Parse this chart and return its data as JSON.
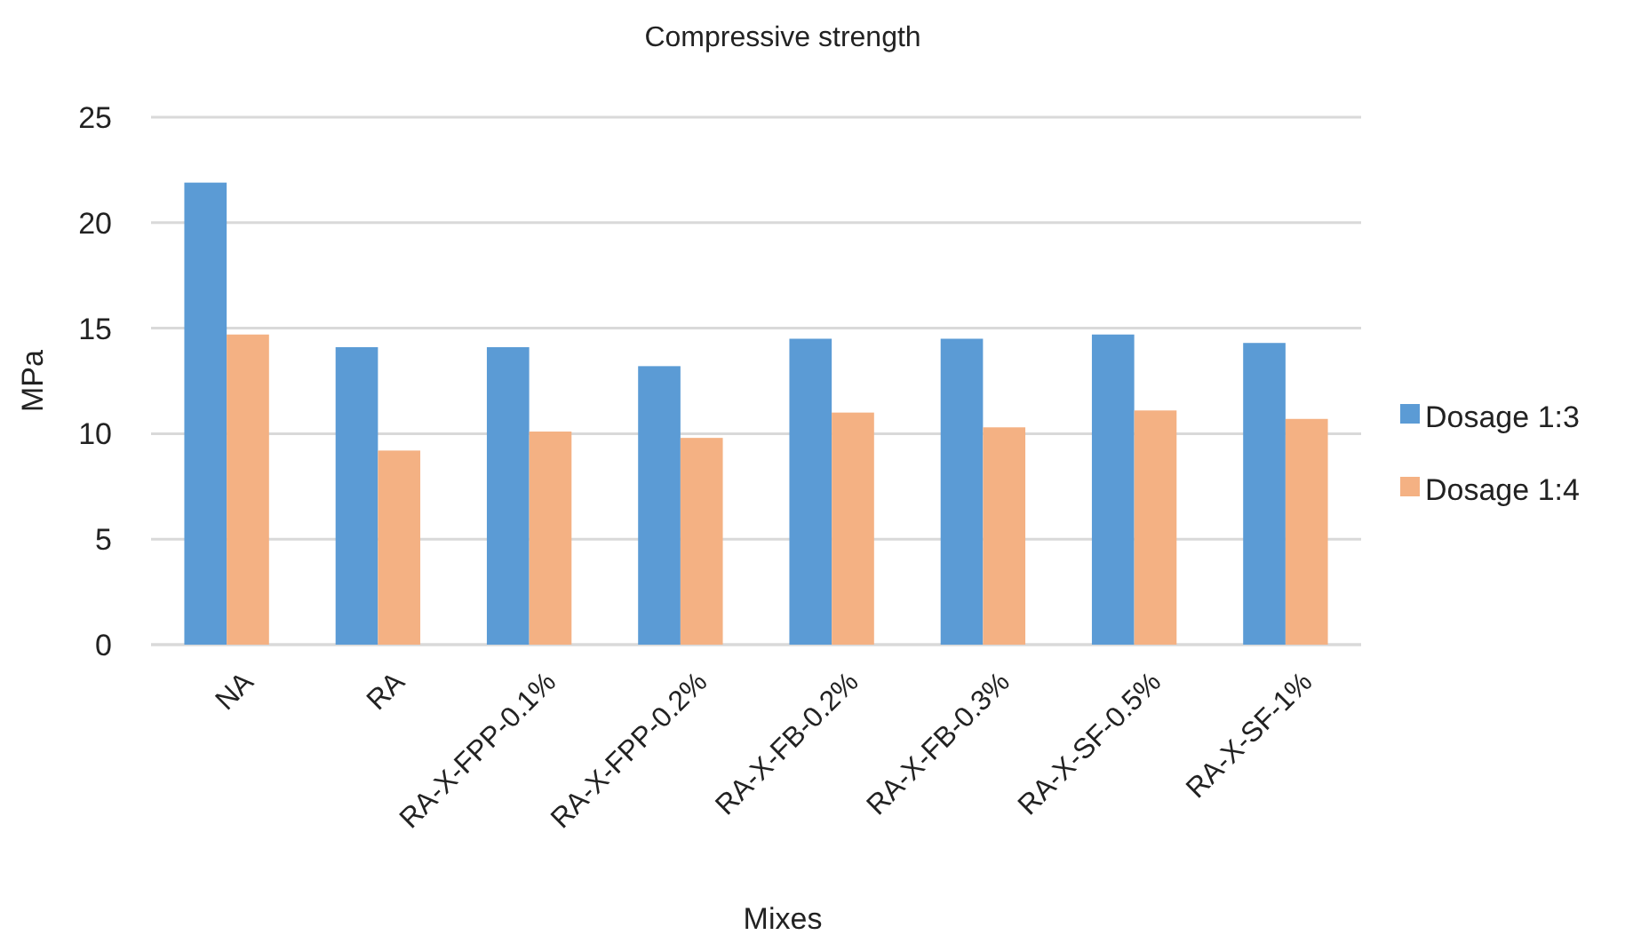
{
  "chart_data": {
    "type": "bar",
    "title": "Compressive strength",
    "xlabel": "Mixes",
    "ylabel": "MPa",
    "categories": [
      "NA",
      "RA",
      "RA-X-FPP-0.1%",
      "RA-X-FPP-0.2%",
      "RA-X-FB-0.2%",
      "RA-X-FB-0.3%",
      "RA-X-SF-0.5%",
      "RA-X-SF-1%"
    ],
    "series": [
      {
        "name": "Dosage 1:3",
        "color": "#5b9bd5",
        "values": [
          21.9,
          14.1,
          14.1,
          13.2,
          14.5,
          14.5,
          14.7,
          14.3
        ]
      },
      {
        "name": "Dosage 1:4",
        "color": "#f4b183",
        "values": [
          14.7,
          9.2,
          10.1,
          9.8,
          11.0,
          10.3,
          11.1,
          10.7
        ]
      }
    ],
    "ylim": [
      0,
      25
    ],
    "yticks": [
      0,
      5,
      10,
      15,
      20,
      25
    ],
    "grid": "y",
    "legend": "right"
  }
}
